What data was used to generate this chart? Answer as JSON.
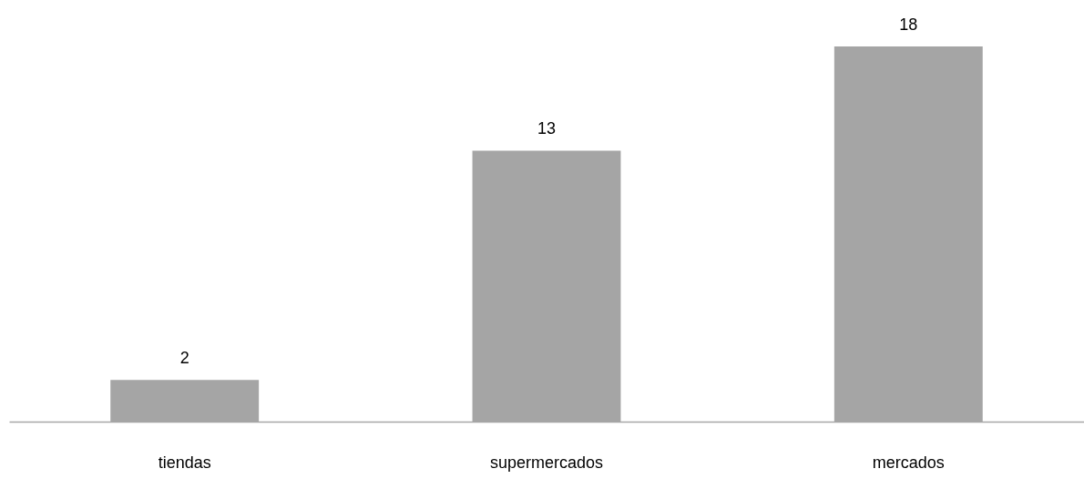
{
  "chart_data": {
    "type": "bar",
    "categories": [
      "tiendas",
      "supermercados",
      "mercados"
    ],
    "values": [
      2,
      13,
      18
    ],
    "color": "#a5a5a5",
    "data_labels": true
  }
}
